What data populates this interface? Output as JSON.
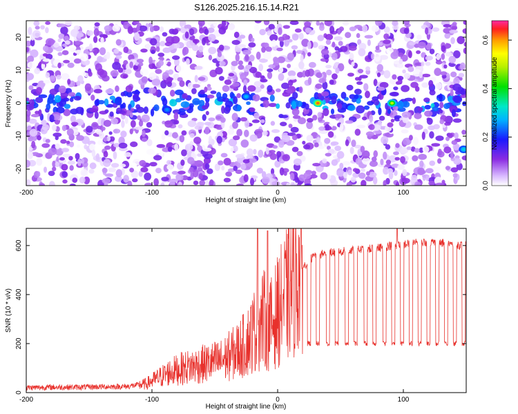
{
  "title": "S126.2025.216.15.14.R21",
  "chart_data": [
    {
      "type": "heatmap",
      "xlabel": "Height of straight line (km)",
      "ylabel": "Frequency (Hz)",
      "xlim": [
        -200,
        150
      ],
      "ylim": [
        -25,
        25
      ],
      "xticks": [
        "-200",
        "-100",
        "0",
        "100"
      ],
      "xtick_values": [
        -200,
        -100,
        0,
        100
      ],
      "yticks": [
        "20",
        "10",
        "0",
        "-10",
        "-20"
      ],
      "ytick_values": [
        20,
        10,
        0,
        -10,
        -20
      ],
      "colorbar": {
        "label": "Normalized spectral amplitude",
        "range": [
          0,
          0.68
        ],
        "ticks": [
          "0.0",
          "0.2",
          "0.4",
          "0.6"
        ],
        "tick_values": [
          0.0,
          0.2,
          0.4,
          0.6
        ],
        "colormap": "rainbow"
      },
      "peaks": [
        {
          "x": -88,
          "y": -2,
          "value": 0.25
        },
        {
          "x": -25,
          "y": 2,
          "value": 0.28
        },
        {
          "x": 32,
          "y": 0,
          "value": 0.62
        },
        {
          "x": 91,
          "y": 0,
          "value": 0.5
        },
        {
          "x": 148,
          "y": -14,
          "value": 0.3
        }
      ],
      "background_level": 0.06,
      "center_band_level": 0.14
    },
    {
      "type": "line",
      "xlabel": "Height of straight line (km)",
      "ylabel": "SNR (10 * v/v)",
      "xlim": [
        -200,
        150
      ],
      "ylim": [
        0,
        670
      ],
      "xticks": [
        "-200",
        "-100",
        "0",
        "100"
      ],
      "xtick_values": [
        -200,
        -100,
        0,
        100
      ],
      "yticks": [
        "0",
        "200",
        "400",
        "600"
      ],
      "ytick_values": [
        0,
        200,
        400,
        600
      ],
      "grid": false,
      "line_color": "#e8312c",
      "series": [
        {
          "x": [
            -200,
            -180,
            -160,
            -140,
            -120,
            -105,
            -95,
            -85,
            -75,
            -65,
            -55,
            -45,
            -35,
            -25,
            -18,
            -12,
            -5,
            0,
            5,
            10,
            15,
            20,
            25,
            30,
            40,
            50,
            60,
            70,
            80,
            90,
            100,
            110,
            120,
            130,
            140,
            150
          ],
          "values": [
            20,
            22,
            22,
            24,
            25,
            35,
            60,
            85,
            100,
            110,
            120,
            130,
            160,
            200,
            260,
            300,
            280,
            330,
            380,
            420,
            470,
            510,
            540,
            560,
            570,
            575,
            580,
            585,
            590,
            600,
            605,
            610,
            615,
            610,
            605,
            600
          ]
        }
      ],
      "dropouts": {
        "level": 200,
        "x": [
          25,
          32,
          40,
          47,
          55,
          62,
          70,
          77,
          85,
          92,
          99,
          106,
          113,
          120,
          127,
          134,
          141,
          148
        ]
      },
      "spikes": [
        {
          "x": -16,
          "value": 670
        },
        {
          "x": -8,
          "value": 660
        },
        {
          "x": 95,
          "value": 670
        }
      ]
    }
  ]
}
